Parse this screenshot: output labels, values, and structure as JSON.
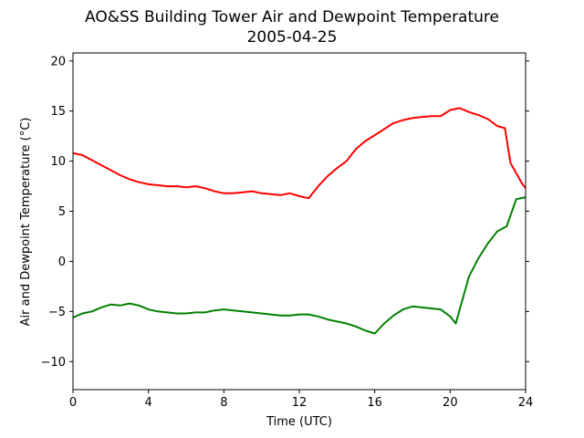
{
  "chart_data": {
    "type": "line",
    "title": "AO&SS Building Tower Air and Dewpoint Temperature",
    "subtitle": "2005-04-25",
    "xlabel": "Time (UTC)",
    "ylabel": "Air and Dewpoint Temperature (°C)",
    "xlim": [
      0,
      24
    ],
    "ylim": [
      -12.8,
      20.8
    ],
    "x_ticks": [
      "0",
      "4",
      "8",
      "12",
      "16",
      "20",
      "24"
    ],
    "y_ticks": [
      "−10",
      "−5",
      "0",
      "5",
      "10",
      "15",
      "20"
    ],
    "grid": false,
    "series": [
      {
        "color": "#ff0000",
        "x": [
          0,
          0.5,
          1,
          1.5,
          2,
          2.5,
          3,
          3.5,
          4,
          4.5,
          5,
          5.5,
          6,
          6.5,
          7,
          7.5,
          8,
          8.5,
          9,
          9.5,
          10,
          10.5,
          11,
          11.5,
          12,
          12.5,
          13,
          13.5,
          14,
          14.5,
          15,
          15.5,
          16,
          16.5,
          17,
          17.5,
          18,
          18.5,
          19,
          19.5,
          20,
          20.5,
          21,
          21.5,
          22,
          22.5,
          22.9,
          23.2,
          23.5,
          23.8,
          24
        ],
        "y": [
          10.8,
          10.6,
          10.1,
          9.6,
          9.1,
          8.6,
          8.2,
          7.9,
          7.7,
          7.6,
          7.5,
          7.5,
          7.4,
          7.5,
          7.3,
          7.0,
          6.8,
          6.8,
          6.9,
          7.0,
          6.8,
          6.7,
          6.6,
          6.8,
          6.5,
          6.3,
          7.5,
          8.5,
          9.3,
          10.0,
          11.2,
          12.0,
          12.6,
          13.2,
          13.8,
          14.1,
          14.3,
          14.4,
          14.5,
          14.5,
          15.1,
          15.3,
          14.9,
          14.6,
          14.2,
          13.5,
          13.3,
          9.8,
          8.8,
          7.8,
          7.3
        ]
      },
      {
        "color": "#008000",
        "x": [
          0,
          0.5,
          1,
          1.5,
          2,
          2.5,
          3,
          3.5,
          4,
          4.5,
          5,
          5.5,
          6,
          6.5,
          7,
          7.5,
          8,
          8.5,
          9,
          9.5,
          10,
          10.5,
          11,
          11.5,
          12,
          12.5,
          13,
          13.5,
          14,
          14.5,
          15,
          15.5,
          16,
          16.5,
          17,
          17.5,
          18,
          18.5,
          19,
          19.5,
          20,
          20.3,
          20.7,
          21,
          21.5,
          22,
          22.5,
          23,
          23.5,
          24
        ],
        "y": [
          -5.6,
          -5.2,
          -5.0,
          -4.6,
          -4.3,
          -4.4,
          -4.2,
          -4.4,
          -4.8,
          -5.0,
          -5.1,
          -5.2,
          -5.2,
          -5.1,
          -5.1,
          -4.9,
          -4.8,
          -4.9,
          -5.0,
          -5.1,
          -5.2,
          -5.3,
          -5.4,
          -5.4,
          -5.3,
          -5.3,
          -5.5,
          -5.8,
          -6.0,
          -6.2,
          -6.5,
          -6.9,
          -7.2,
          -6.2,
          -5.4,
          -4.8,
          -4.5,
          -4.6,
          -4.7,
          -4.8,
          -5.5,
          -6.2,
          -3.5,
          -1.5,
          0.3,
          1.8,
          3.0,
          3.5,
          6.2,
          6.4
        ]
      }
    ]
  }
}
